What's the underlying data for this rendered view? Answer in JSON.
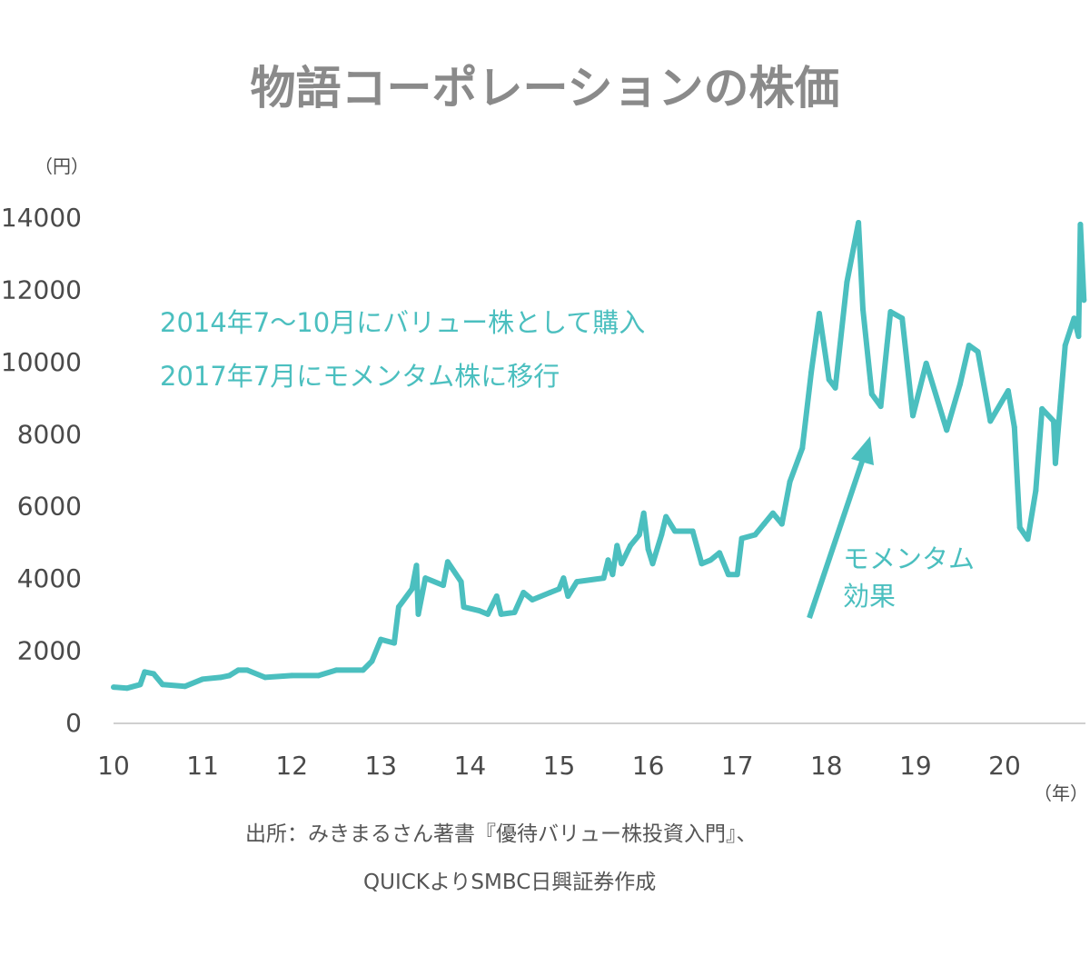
{
  "chart_data": {
    "type": "line",
    "title": "物語コーポレーションの株価",
    "ylabel": "（円）",
    "xlabel": "（年）",
    "ylim": [
      0,
      14000
    ],
    "xlim": [
      10,
      20.9
    ],
    "yticks": [
      "0",
      "2000",
      "4000",
      "6000",
      "8000",
      "10000",
      "12000",
      "14000"
    ],
    "xticks": [
      "10",
      "11",
      "12",
      "13",
      "14",
      "15",
      "16",
      "17",
      "18",
      "19",
      "20"
    ],
    "grid": false,
    "line_color": "#4bbfbf",
    "series": [
      {
        "x": [
          10.0,
          10.15,
          10.3,
          10.35,
          10.45,
          10.55,
          10.8,
          11.0,
          11.2,
          11.3,
          11.4,
          11.5,
          11.7,
          12.0,
          12.3,
          12.5,
          12.8,
          12.9,
          13.0,
          13.15,
          13.2,
          13.35,
          13.4,
          13.42,
          13.5,
          13.7,
          13.75,
          13.9,
          13.93,
          14.1,
          14.2,
          14.3,
          14.35,
          14.5,
          14.6,
          14.7,
          14.9,
          15.0,
          15.05,
          15.1,
          15.2,
          15.5,
          15.55,
          15.6,
          15.65,
          15.7,
          15.8,
          15.9,
          15.95,
          16.0,
          16.05,
          16.15,
          16.2,
          16.3,
          16.5,
          16.6,
          16.7,
          16.8,
          16.9,
          17.0,
          17.05,
          17.2,
          17.3,
          17.4,
          17.5,
          17.59,
          17.73,
          17.83,
          17.92,
          18.03,
          18.1,
          18.23,
          18.36,
          18.41,
          18.51,
          18.61,
          18.68,
          18.72,
          18.85,
          18.97,
          19.12,
          19.35,
          19.5,
          19.6,
          19.7,
          19.84,
          20.04,
          20.11,
          20.17,
          20.26,
          20.35,
          20.42,
          20.55,
          20.57,
          20.68,
          20.78,
          20.83,
          20.85,
          20.89
        ],
        "y": [
          980,
          950,
          1050,
          1400,
          1350,
          1050,
          1000,
          1200,
          1250,
          1300,
          1450,
          1450,
          1250,
          1300,
          1300,
          1450,
          1450,
          1700,
          2300,
          2200,
          3200,
          3700,
          4350,
          3000,
          4000,
          3800,
          4450,
          3900,
          3200,
          3100,
          3000,
          3500,
          3000,
          3050,
          3600,
          3400,
          3600,
          3700,
          4000,
          3500,
          3900,
          4000,
          4500,
          4100,
          4900,
          4400,
          4900,
          5200,
          5800,
          4800,
          4400,
          5200,
          5700,
          5300,
          5300,
          4400,
          4500,
          4700,
          4100,
          4100,
          5100,
          5200,
          5500,
          5800,
          5500,
          6670,
          7600,
          9700,
          11330,
          9500,
          9270,
          12200,
          13850,
          11450,
          9100,
          8760,
          10450,
          11380,
          11200,
          8500,
          9950,
          8100,
          9370,
          10450,
          10270,
          8350,
          9190,
          8180,
          5400,
          5080,
          6420,
          8690,
          8350,
          7180,
          10450,
          11200,
          10700,
          13800,
          11700
        ]
      }
    ],
    "annotations": [
      "2014年7〜10月にバリュー株として購入",
      "2017年7月にモメンタム株に移行",
      "モメンタム",
      "効果"
    ],
    "source": [
      "出所：みきまるさん著書『優待バリュー株投資入門』、",
      "QUICKよりSMBC日興証券作成"
    ]
  }
}
